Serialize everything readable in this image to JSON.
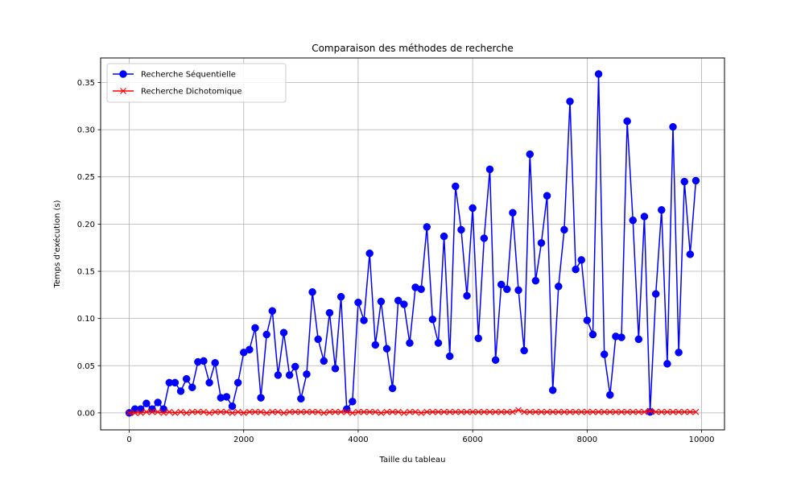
{
  "chart_data": {
    "type": "line",
    "title": "Comparaison des méthodes de recherche",
    "xlabel": "Taille du tableau",
    "ylabel": "Temps d'exécution (s)",
    "xlim": [
      -500,
      10400
    ],
    "ylim": [
      -0.018,
      0.376
    ],
    "xticks": [
      0,
      2000,
      4000,
      6000,
      8000,
      10000
    ],
    "xtick_labels": [
      "0",
      "2000",
      "4000",
      "6000",
      "8000",
      "10000"
    ],
    "yticks": [
      0.0,
      0.05,
      0.1,
      0.15,
      0.2,
      0.25,
      0.3,
      0.35
    ],
    "ytick_labels": [
      "0.00",
      "0.05",
      "0.10",
      "0.15",
      "0.20",
      "0.25",
      "0.30",
      "0.35"
    ],
    "grid": true,
    "legend_position": "top-left",
    "x": [
      0,
      100,
      200,
      300,
      400,
      500,
      600,
      700,
      800,
      900,
      1000,
      1100,
      1200,
      1300,
      1400,
      1500,
      1600,
      1700,
      1800,
      1900,
      2000,
      2100,
      2200,
      2300,
      2400,
      2500,
      2600,
      2700,
      2800,
      2900,
      3000,
      3100,
      3200,
      3300,
      3400,
      3500,
      3600,
      3700,
      3800,
      3900,
      4000,
      4100,
      4200,
      4300,
      4400,
      4500,
      4600,
      4700,
      4800,
      4900,
      5000,
      5100,
      5200,
      5300,
      5400,
      5500,
      5600,
      5700,
      5800,
      5900,
      6000,
      6100,
      6200,
      6300,
      6400,
      6500,
      6600,
      6700,
      6800,
      6900,
      7000,
      7100,
      7200,
      7300,
      7400,
      7500,
      7600,
      7700,
      7800,
      7900,
      8000,
      8100,
      8200,
      8300,
      8400,
      8500,
      8600,
      8700,
      8800,
      8900,
      9000,
      9100,
      9200,
      9300,
      9400,
      9500,
      9600,
      9700,
      9800,
      9900
    ],
    "series": [
      {
        "name": "Recherche Séquentielle",
        "color": "#0000ff",
        "marker": "circle",
        "values": [
          0.0,
          0.004,
          0.004,
          0.01,
          0.004,
          0.011,
          0.004,
          0.032,
          0.032,
          0.023,
          0.036,
          0.027,
          0.054,
          0.055,
          0.032,
          0.053,
          0.016,
          0.017,
          0.007,
          0.032,
          0.064,
          0.067,
          0.09,
          0.016,
          0.083,
          0.108,
          0.04,
          0.085,
          0.04,
          0.049,
          0.015,
          0.041,
          0.128,
          0.078,
          0.055,
          0.106,
          0.047,
          0.123,
          0.004,
          0.012,
          0.117,
          0.098,
          0.169,
          0.072,
          0.118,
          0.068,
          0.026,
          0.119,
          0.115,
          0.074,
          0.133,
          0.131,
          0.197,
          0.099,
          0.074,
          0.187,
          0.06,
          0.24,
          0.194,
          0.124,
          0.217,
          0.079,
          0.185,
          0.258,
          0.056,
          0.136,
          0.131,
          0.212,
          0.13,
          0.066,
          0.274,
          0.14,
          0.18,
          0.23,
          0.024,
          0.134,
          0.194,
          0.33,
          0.152,
          0.162,
          0.098,
          0.083,
          0.359,
          0.062,
          0.019,
          0.081,
          0.08,
          0.309,
          0.204,
          0.078,
          0.208,
          0.001,
          0.126,
          0.215,
          0.052,
          0.303,
          0.064,
          0.245,
          0.168,
          0.246
        ]
      },
      {
        "name": "Recherche Dichotomique",
        "color": "#ff0000",
        "marker": "x",
        "values": [
          0.0,
          0.0,
          0.0,
          0.001,
          0.001,
          0.001,
          0.0,
          0.001,
          0.0,
          0.001,
          0.0,
          0.001,
          0.001,
          0.001,
          0.0,
          0.001,
          0.001,
          0.001,
          0.0,
          0.001,
          0.0,
          0.001,
          0.001,
          0.001,
          0.0,
          0.001,
          0.001,
          0.0,
          0.001,
          0.001,
          0.001,
          0.001,
          0.001,
          0.001,
          0.0,
          0.001,
          0.001,
          0.001,
          0.001,
          0.0,
          0.001,
          0.001,
          0.001,
          0.001,
          0.0,
          0.001,
          0.001,
          0.001,
          0.0,
          0.001,
          0.001,
          0.0,
          0.001,
          0.001,
          0.001,
          0.001,
          0.001,
          0.001,
          0.001,
          0.001,
          0.001,
          0.001,
          0.001,
          0.001,
          0.001,
          0.001,
          0.001,
          0.001,
          0.003,
          0.001,
          0.001,
          0.001,
          0.001,
          0.001,
          0.001,
          0.001,
          0.001,
          0.001,
          0.001,
          0.001,
          0.001,
          0.001,
          0.001,
          0.001,
          0.001,
          0.001,
          0.001,
          0.001,
          0.001,
          0.001,
          0.001,
          0.002,
          0.001,
          0.001,
          0.001,
          0.001,
          0.001,
          0.001,
          0.001,
          0.001
        ]
      }
    ]
  }
}
